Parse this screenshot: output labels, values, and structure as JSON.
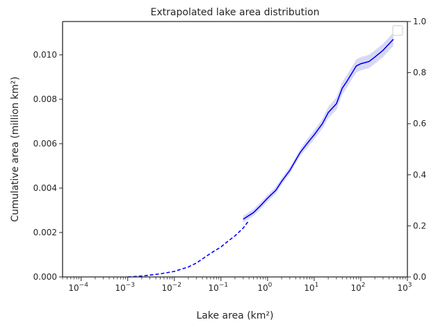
{
  "chart_data": {
    "type": "line",
    "title": "Extrapolated lake area distribution",
    "xlabel": "Lake area (km²)",
    "ylabel": "Cumulative area (million km²)",
    "x_scale": "log",
    "xlim": [
      4e-05,
      1000
    ],
    "ylim": [
      0,
      0.0115
    ],
    "y2lim": [
      0,
      1.0
    ],
    "x_ticks": [
      {
        "value": 0.0001,
        "base": "10",
        "exp": "−4"
      },
      {
        "value": 0.001,
        "base": "10",
        "exp": "−3"
      },
      {
        "value": 0.01,
        "base": "10",
        "exp": "−2"
      },
      {
        "value": 0.1,
        "base": "10",
        "exp": "−1"
      },
      {
        "value": 1,
        "base": "10",
        "exp": "0"
      },
      {
        "value": 10,
        "base": "10",
        "exp": "1"
      },
      {
        "value": 100,
        "base": "10",
        "exp": "2"
      },
      {
        "value": 1000,
        "base": "10",
        "exp": "3"
      }
    ],
    "y_ticks": [
      {
        "value": 0,
        "label": "0.000"
      },
      {
        "value": 0.002,
        "label": "0.002"
      },
      {
        "value": 0.004,
        "label": "0.004"
      },
      {
        "value": 0.006,
        "label": "0.006"
      },
      {
        "value": 0.008,
        "label": "0.008"
      },
      {
        "value": 0.01,
        "label": "0.010"
      }
    ],
    "y2_ticks": [
      {
        "value": 0,
        "label": "0.0"
      },
      {
        "value": 0.2,
        "label": "0.2"
      },
      {
        "value": 0.4,
        "label": "0.4"
      },
      {
        "value": 0.6,
        "label": "0.6"
      },
      {
        "value": 0.8,
        "label": "0.8"
      },
      {
        "value": 1.0,
        "label": "1.0"
      }
    ],
    "legend": {
      "placement": "top-right",
      "entries": []
    },
    "grid": false,
    "colors": {
      "line": "#0000ff",
      "band": "#c8c8f0",
      "axes": "#262626"
    },
    "series": [
      {
        "style": "dashed",
        "x": [
          0.001,
          0.002,
          0.005,
          0.01,
          0.02,
          0.03,
          0.05,
          0.07,
          0.1,
          0.15,
          0.2,
          0.3,
          0.4
        ],
        "y": [
          0.0,
          4e-05,
          0.00014,
          0.00025,
          0.00045,
          0.00063,
          0.00095,
          0.00115,
          0.00135,
          0.00165,
          0.00185,
          0.0022,
          0.00255
        ]
      },
      {
        "style": "solid",
        "x": [
          0.3,
          0.5,
          0.7,
          1,
          1.5,
          2,
          3,
          5,
          7,
          10,
          15,
          20,
          30,
          40,
          50,
          70,
          80,
          100,
          150,
          200,
          300,
          500
        ],
        "y": [
          0.0026,
          0.0029,
          0.0032,
          0.00355,
          0.0039,
          0.0043,
          0.0048,
          0.0056,
          0.006,
          0.0064,
          0.0069,
          0.0074,
          0.0078,
          0.0085,
          0.0088,
          0.0093,
          0.0095,
          0.0096,
          0.0097,
          0.0099,
          0.0102,
          0.0107
        ]
      }
    ],
    "band": {
      "x": [
        0.3,
        0.5,
        0.7,
        1,
        1.5,
        2,
        3,
        5,
        7,
        10,
        15,
        20,
        30,
        40,
        50,
        70,
        80,
        100,
        150,
        200,
        300,
        500
      ],
      "upper": [
        0.00275,
        0.00305,
        0.00335,
        0.0037,
        0.00405,
        0.00445,
        0.00495,
        0.00575,
        0.0062,
        0.0066,
        0.00712,
        0.00765,
        0.00808,
        0.00878,
        0.00908,
        0.00958,
        0.0098,
        0.0099,
        0.01,
        0.0102,
        0.0105,
        0.011
      ],
      "lower": [
        0.00245,
        0.00275,
        0.00305,
        0.0034,
        0.00375,
        0.00415,
        0.00465,
        0.00545,
        0.0058,
        0.0062,
        0.00668,
        0.00715,
        0.00752,
        0.00822,
        0.00852,
        0.00902,
        0.0092,
        0.0093,
        0.0094,
        0.0096,
        0.0099,
        0.0104
      ]
    }
  }
}
